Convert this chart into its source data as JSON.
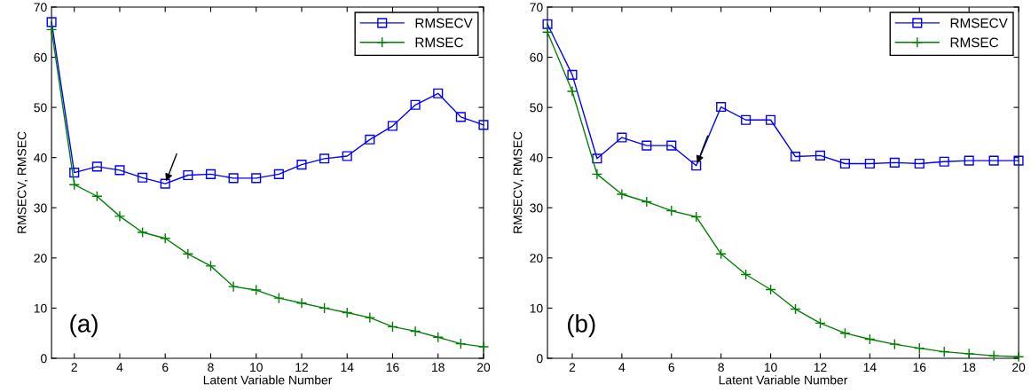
{
  "chart_data": [
    {
      "type": "line",
      "xlabel": "Latent Variable Number",
      "ylabel": "RMSECV, RMSEC",
      "x": [
        1,
        2,
        3,
        4,
        5,
        6,
        7,
        8,
        9,
        10,
        11,
        12,
        13,
        14,
        15,
        16,
        17,
        18,
        19,
        20
      ],
      "xlim": [
        1,
        20
      ],
      "xticks": [
        2,
        4,
        6,
        8,
        10,
        12,
        14,
        16,
        18,
        20
      ],
      "ylim": [
        0,
        70
      ],
      "yticks": [
        0,
        10,
        20,
        30,
        40,
        50,
        60,
        70
      ],
      "legend": "top right",
      "grid": false,
      "line_style": "solid",
      "series": [
        {
          "name": "RMSECV",
          "color": "#0000ff",
          "marker": "square",
          "values": [
            67,
            37,
            38.2,
            37.5,
            36,
            34.8,
            36.5,
            36.7,
            35.9,
            35.9,
            36.7,
            38.6,
            39.8,
            40.3,
            43.6,
            46.3,
            50.5,
            52.8,
            48.1,
            46.5
          ]
        },
        {
          "name": "RMSEC",
          "color": "#008000",
          "marker": "cross",
          "values": [
            65.5,
            34.6,
            32.3,
            28.3,
            25.1,
            23.9,
            20.8,
            18.4,
            14.3,
            13.6,
            12,
            11,
            10,
            9.1,
            8.1,
            6.3,
            5.4,
            4.2,
            2.9,
            2.3
          ]
        }
      ],
      "annotations": [
        "(a)"
      ]
    },
    {
      "type": "line",
      "xlabel": "Latent Variable Number",
      "ylabel": "RMSECV, RMSEC",
      "x": [
        1,
        2,
        3,
        4,
        5,
        6,
        7,
        8,
        9,
        10,
        11,
        12,
        13,
        14,
        15,
        16,
        17,
        18,
        19,
        20
      ],
      "xlim": [
        1,
        20
      ],
      "xticks": [
        2,
        4,
        6,
        8,
        10,
        12,
        14,
        16,
        18,
        20
      ],
      "ylim": [
        0,
        70
      ],
      "yticks": [
        0,
        10,
        20,
        30,
        40,
        50,
        60,
        70
      ],
      "legend": "top right",
      "grid": false,
      "line_style": "solid",
      "series": [
        {
          "name": "RMSECV",
          "color": "#0000ff",
          "marker": "square",
          "values": [
            66.6,
            56.5,
            39.8,
            44,
            42.4,
            42.4,
            38.4,
            50.1,
            47.5,
            47.5,
            40.2,
            40.4,
            38.8,
            38.8,
            39,
            38.8,
            39.2,
            39.4,
            39.4,
            39.4
          ]
        },
        {
          "name": "RMSEC",
          "color": "#008000",
          "marker": "cross",
          "values": [
            65,
            53.2,
            36.7,
            32.7,
            31.2,
            29.4,
            28.2,
            20.8,
            16.7,
            13.7,
            9.8,
            7,
            5,
            3.8,
            2.8,
            2,
            1.3,
            0.9,
            0.5,
            0.3
          ]
        }
      ],
      "annotations": [
        "(b)"
      ]
    }
  ]
}
